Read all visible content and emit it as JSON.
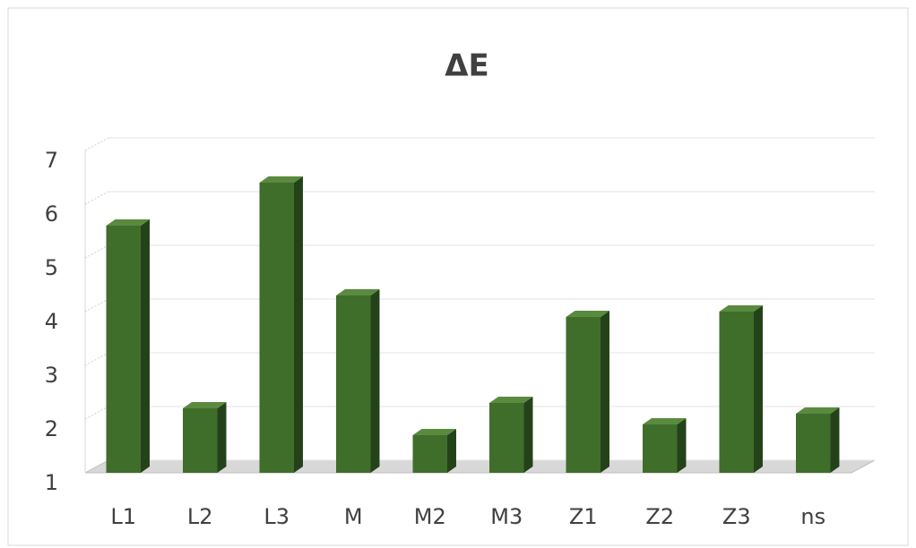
{
  "chart_data": {
    "type": "bar",
    "title": "ΔE",
    "categories": [
      "L1",
      "L2",
      "L3",
      "M",
      "M2",
      "M3",
      "Z1",
      "Z2",
      "Z3",
      "ns"
    ],
    "values": [
      5.6,
      2.2,
      6.4,
      4.3,
      1.7,
      2.3,
      3.9,
      1.9,
      4.0,
      2.1
    ],
    "color": "#3f6e2b",
    "ylim": [
      1,
      7
    ],
    "yticks": [
      1,
      2,
      3,
      4,
      5,
      6,
      7
    ],
    "grid": true
  }
}
